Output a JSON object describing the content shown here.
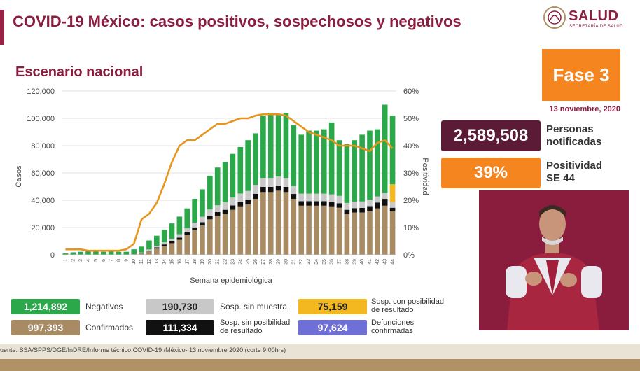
{
  "header": {
    "title": "COVID-19 México: casos positivos, sospechosos y negativos",
    "subtitle": "Escenario nacional",
    "logo_text": "SALUD",
    "logo_sub": "SECRETARÍA DE SALUD"
  },
  "fase": {
    "label": "Fase 3",
    "date": "13 noviembre, 2020"
  },
  "stats": {
    "notified_value": "2,589,508",
    "notified_label_1": "Personas",
    "notified_label_2": "notificadas",
    "positivity_value": "39%",
    "positivity_label_1": "Positividad",
    "positivity_label_2": "SE 44"
  },
  "legend": {
    "negativos_value": "1,214,892",
    "negativos_label": "Negativos",
    "sin_muestra_value": "190,730",
    "sin_muestra_label": "Sosp. sin muestra",
    "con_posibilidad_value": "75,159",
    "con_posibilidad_label_1": "Sosp. con posibilidad",
    "con_posibilidad_label_2": "de resultado",
    "confirmados_value": "997,393",
    "confirmados_label": "Confirmados",
    "sin_posibilidad_value": "111,334",
    "sin_posibilidad_label_1": "Sosp. sin posibilidad",
    "sin_posibilidad_label_2": "de resultado",
    "defunciones_value": "97,624",
    "defunciones_label_1": "Defunciones",
    "defunciones_label_2": "confirmadas"
  },
  "footer": {
    "source": "uente: SSA/SPPS/DGE/InDRE/Informe técnico.COVID-19 /México- 13 noviembre 2020 (corte 9:00hrs)"
  },
  "colors": {
    "confirmados": "#a88b63",
    "sin_posibilidad": "#111111",
    "sin_muestra": "#c8c8c8",
    "negativos": "#2aa84a",
    "con_posibilidad": "#f3b81f",
    "defunciones": "#6f6fd8",
    "positividad": "#e8951f",
    "title": "#8b1e3f",
    "fase": "#f5861f",
    "notified_box": "#5b1a35",
    "positivity_box": "#f5861f"
  },
  "chart_data": {
    "type": "bar",
    "stacked": true,
    "xlabel": "Semana epidemiológica",
    "ylabel": "Casos",
    "y2label": "Positividad",
    "ylim": [
      0,
      120000
    ],
    "y2lim": [
      0,
      60
    ],
    "yticks": [
      "0",
      "20,000",
      "40,000",
      "60,000",
      "80,000",
      "100,000",
      "120,000"
    ],
    "y2ticks": [
      "0%",
      "10%",
      "20%",
      "30%",
      "40%",
      "50%",
      "60%"
    ],
    "categories": [
      "1",
      "2",
      "3",
      "4",
      "5",
      "6",
      "7",
      "8",
      "9",
      "10",
      "11",
      "12",
      "13",
      "14",
      "15",
      "16",
      "17",
      "18",
      "19",
      "20",
      "21",
      "22",
      "23",
      "24",
      "25",
      "26",
      "27",
      "28",
      "29",
      "30",
      "31",
      "32",
      "33",
      "34",
      "35",
      "36",
      "37",
      "38",
      "39",
      "40",
      "41",
      "42",
      "43",
      "44"
    ],
    "series": [
      {
        "name": "Confirmados",
        "values": [
          0,
          0,
          0,
          0,
          0,
          0,
          0,
          0,
          0,
          200,
          1000,
          2500,
          4500,
          6500,
          8500,
          11000,
          14500,
          18000,
          21500,
          26000,
          28500,
          30000,
          33000,
          35500,
          37000,
          41000,
          46000,
          46000,
          47000,
          46000,
          41000,
          36000,
          36000,
          36000,
          36000,
          35500,
          34500,
          30000,
          31000,
          31000,
          32000,
          34000,
          36000,
          32000
        ]
      },
      {
        "name": "Sosp. sin posibilidad de resultado",
        "values": [
          0,
          0,
          0,
          0,
          0,
          0,
          0,
          0,
          0,
          100,
          300,
          600,
          900,
          1100,
          1300,
          1600,
          1900,
          2100,
          2400,
          2700,
          2800,
          3000,
          3200,
          3400,
          3600,
          3700,
          3800,
          3800,
          3800,
          3800,
          3600,
          3300,
          3300,
          3300,
          3300,
          3300,
          3300,
          3000,
          3200,
          3400,
          3700,
          4300,
          5000,
          2500
        ]
      },
      {
        "name": "Sosp. sin muestra",
        "values": [
          0,
          0,
          0,
          0,
          0,
          0,
          0,
          0,
          0,
          100,
          400,
          800,
          1200,
          1600,
          2000,
          2500,
          3000,
          3500,
          4000,
          4500,
          5000,
          5500,
          5800,
          6000,
          6200,
          6500,
          6600,
          6600,
          6600,
          6500,
          5800,
          5500,
          5500,
          5500,
          5500,
          5500,
          5400,
          5000,
          4800,
          4700,
          4600,
          4500,
          4500,
          4200
        ]
      },
      {
        "name": "Sosp. con posibilidad de resultado",
        "values": [
          0,
          0,
          0,
          0,
          0,
          0,
          0,
          0,
          0,
          0,
          0,
          0,
          0,
          0,
          0,
          0,
          0,
          0,
          0,
          0,
          0,
          0,
          0,
          0,
          0,
          0,
          0,
          0,
          0,
          0,
          0,
          0,
          0,
          0,
          0,
          0,
          0,
          0,
          0,
          0,
          0,
          0,
          0,
          13000
        ]
      },
      {
        "name": "Negativos",
        "values": [
          1000,
          1800,
          2200,
          2800,
          2400,
          2200,
          2400,
          2200,
          2200,
          3600,
          4300,
          6600,
          7400,
          9300,
          11200,
          12900,
          14600,
          17400,
          20100,
          24800,
          27700,
          29500,
          32000,
          34100,
          37200,
          37800,
          45600,
          47600,
          45600,
          47700,
          44600,
          43200,
          46200,
          46200,
          47200,
          52700,
          40800,
          43000,
          45000,
          48900,
          50700,
          49200,
          64500,
          50300
        ]
      }
    ],
    "line": {
      "name": "Positividad",
      "axis": "right",
      "values": [
        2,
        2,
        2,
        1.5,
        1.5,
        1.5,
        1.5,
        1.5,
        2,
        4,
        13,
        15,
        19,
        26,
        34,
        40,
        42,
        42,
        44,
        46,
        48,
        48,
        49,
        50,
        50,
        51,
        51.5,
        51.5,
        51.5,
        51,
        49,
        47,
        45,
        44,
        43,
        42,
        40,
        40,
        40,
        39,
        38,
        41,
        42,
        39
      ]
    }
  }
}
